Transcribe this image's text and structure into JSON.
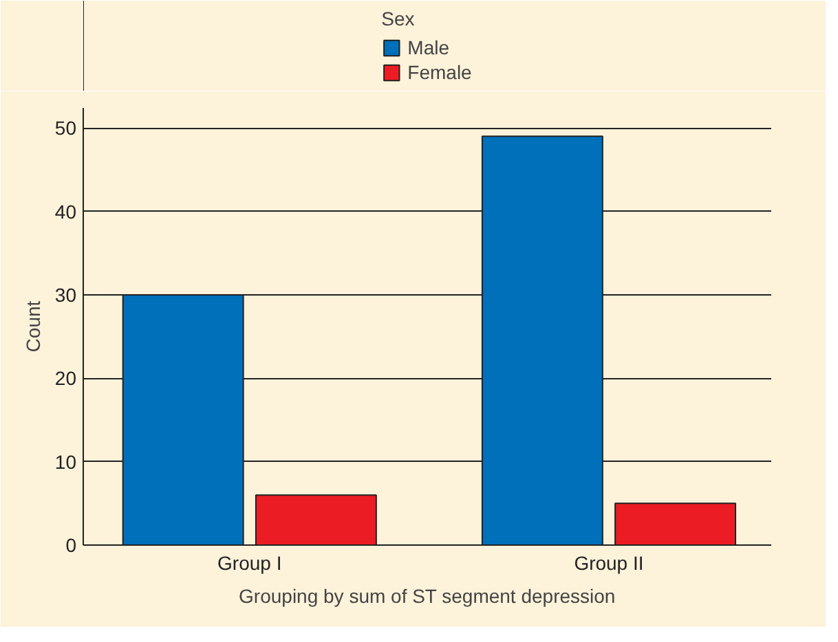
{
  "chart_data": {
    "type": "bar",
    "xlabel": "Grouping by sum of ST segment depression",
    "ylabel": "Count",
    "legend_title": "Sex",
    "categories": [
      "Group I",
      "Group II"
    ],
    "series": [
      {
        "name": "Male",
        "color": "#0070bb",
        "values": [
          30,
          49
        ]
      },
      {
        "name": "Female",
        "color": "#ec1c24",
        "values": [
          6,
          5
        ]
      }
    ],
    "ylim": [
      0,
      52.4
    ],
    "yticks": [
      0,
      10,
      20,
      30,
      40,
      50
    ],
    "grid": "y",
    "legend": "top"
  }
}
